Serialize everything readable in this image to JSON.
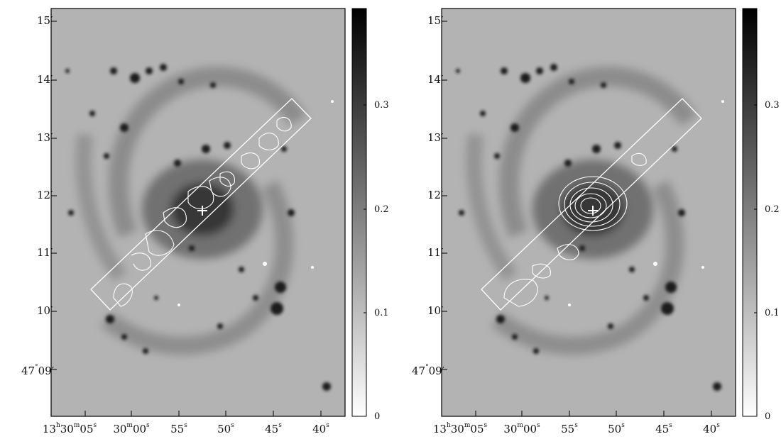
{
  "colorbar": {
    "ticks": [
      {
        "value": 0.3,
        "label": "0.3"
      },
      {
        "value": 0.2,
        "label": "0.2"
      },
      {
        "value": 0.1,
        "label": "0.1"
      },
      {
        "value": 0,
        "label": "0"
      }
    ],
    "range": [
      0,
      0.39
    ],
    "colormap": "gray inverted (white=0, black=max)"
  },
  "axes": {
    "dec_ticks": [
      {
        "deg": "",
        "min": "15",
        "sym": "′"
      },
      {
        "deg": "",
        "min": "14",
        "sym": "′"
      },
      {
        "deg": "",
        "min": "13",
        "sym": "′"
      },
      {
        "deg": "",
        "min": "12",
        "sym": "′"
      },
      {
        "deg": "",
        "min": "11",
        "sym": "′"
      },
      {
        "deg": "",
        "min": "10",
        "sym": "′"
      },
      {
        "deg": "47",
        "min": "09",
        "sym": "′"
      }
    ],
    "ra_ticks": [
      {
        "h": "13",
        "m": "30",
        "s": "05"
      },
      {
        "h": "",
        "m": "30",
        "s": "00"
      },
      {
        "h": "",
        "m": "",
        "s": "55"
      },
      {
        "h": "",
        "m": "",
        "s": "50"
      },
      {
        "h": "",
        "m": "",
        "s": "45"
      },
      {
        "h": "",
        "m": "",
        "s": "40"
      }
    ],
    "unit_labels": {
      "h": "h",
      "m": "m",
      "s": "s",
      "deg": "°"
    }
  },
  "panels": [
    {
      "id": "left",
      "marker": "+",
      "contour_emphasis": "diffuse"
    },
    {
      "id": "right",
      "marker": "+",
      "contour_emphasis": "nuclear"
    }
  ],
  "colors": {
    "background": "#b0b0b0",
    "frame": "#000000",
    "contour": "#ffffff"
  }
}
